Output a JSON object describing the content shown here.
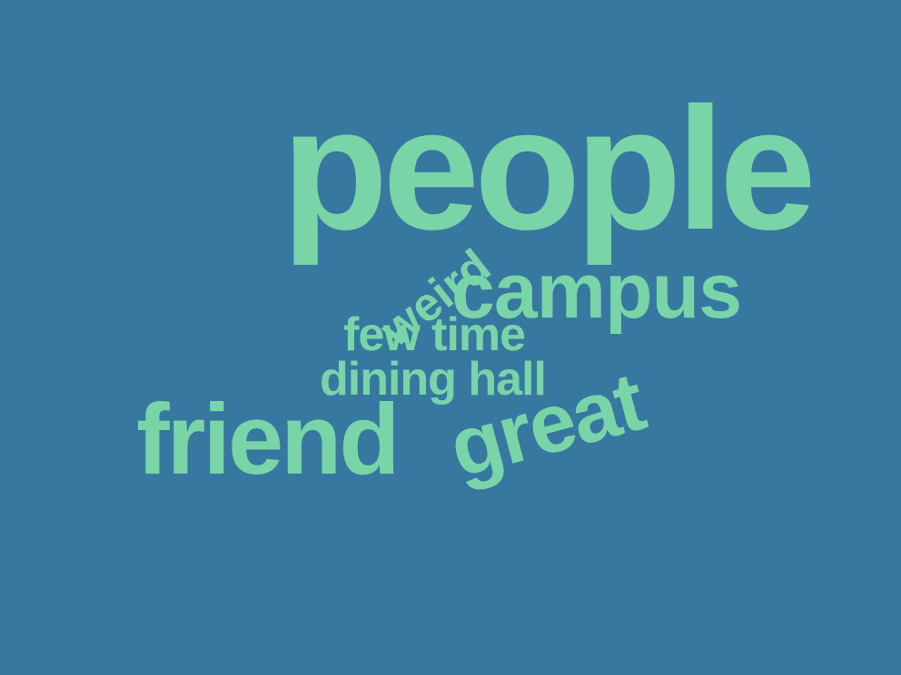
{
  "colors": {
    "background": "#3778a0",
    "word": "#79d5a8"
  },
  "words": {
    "people": "people",
    "campus": "campus",
    "weird": "weird",
    "few_time": "few time",
    "dining_hall": "dining hall",
    "friend": "friend",
    "great": "great"
  }
}
